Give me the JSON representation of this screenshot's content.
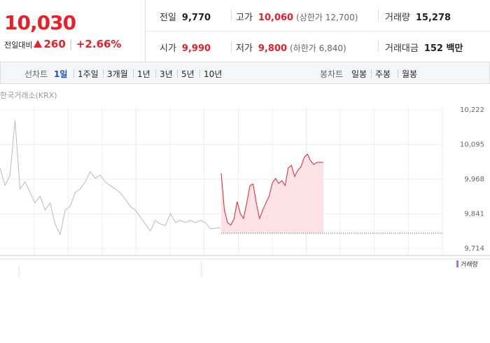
{
  "summary": {
    "price": "10,030",
    "change_label": "전일대비",
    "change": "260",
    "change_rate": "+2.66%"
  },
  "stats": [
    {
      "label": "전일",
      "value": "9,770"
    },
    {
      "label": "고가",
      "value": "10,060",
      "note": "(상한가 12,700)"
    },
    {
      "label": "거래량",
      "value": "15,278"
    },
    {
      "label": "시가",
      "value": "9,990"
    },
    {
      "label": "저가",
      "value": "9,800",
      "note": "(하한가 6,840)"
    },
    {
      "label": "거래대금",
      "value": "152 백만"
    }
  ],
  "tabs": {
    "line_label": "선차트",
    "line_periods": [
      "1일",
      "1주일",
      "3개월",
      "1년",
      "3년",
      "5년",
      "10년"
    ],
    "selected_index": 0,
    "candle_label": "봉차트",
    "candle_periods": [
      "일봉",
      "주봉",
      "월봉"
    ]
  },
  "chart": {
    "type": "line",
    "source": "한국거래소(KRX)",
    "ylim": [
      9714,
      10222
    ],
    "yticks": [
      {
        "value": 10222,
        "label": "10,222"
      },
      {
        "value": 10095,
        "label": "10,095"
      },
      {
        "value": 9968,
        "label": "9,968"
      },
      {
        "value": 9841,
        "label": "9,841"
      },
      {
        "value": 9714,
        "label": "9,714"
      }
    ],
    "baseline": 9770,
    "series": [
      {
        "color": "#bbbbbb",
        "values": [
          10009,
          9945,
          9983,
          10184,
          9932,
          9958,
          9919,
          9881,
          9906,
          9855,
          9881,
          9804,
          9765,
          9855,
          9868,
          9919,
          9932,
          9958,
          9996,
          9971,
          9983,
          9958,
          9945,
          9932,
          9919,
          9894,
          9868,
          9855,
          9829,
          9804,
          9778,
          9817,
          9804,
          9799,
          9842,
          9809,
          9817,
          9809,
          9817,
          9809,
          9817,
          9809,
          9786,
          9788,
          9791
        ]
      },
      {
        "color": "#e8202a",
        "fill": "#fde3e6",
        "values": [
          9990,
          9855,
          9809,
          9800,
          9822,
          9886,
          9842,
          9824,
          9881,
          9945,
          9950,
          9881,
          9824,
          9855,
          9881,
          9906,
          9953,
          9971,
          9953,
          9963,
          9945,
          10009,
          10019,
          9978,
          10001,
          10014,
          10048,
          10060,
          10035,
          10022,
          10030,
          10030,
          10030
        ]
      }
    ],
    "volume_label": "거래량",
    "volume_color": "#9b7fc7"
  }
}
